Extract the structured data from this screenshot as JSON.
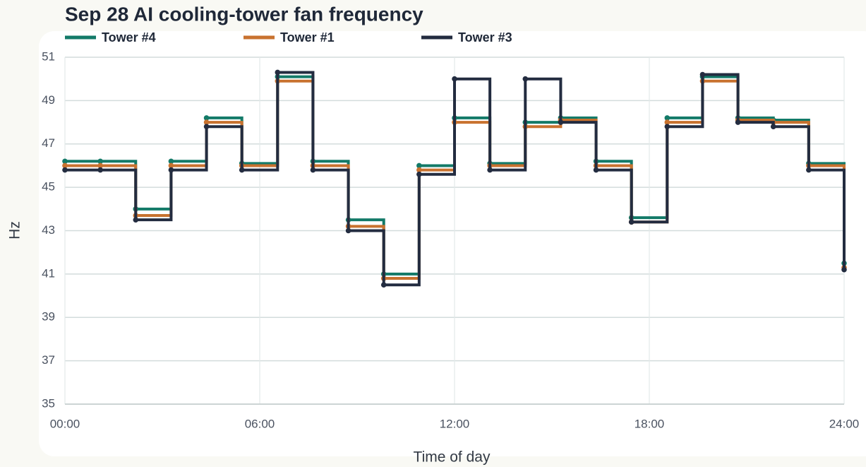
{
  "chart_data": {
    "type": "step",
    "title": "Sep 28 AI cooling-tower fan frequency",
    "x_label": "Time of day",
    "y_label": "Hz",
    "x": [
      0,
      1.09,
      2.18,
      3.27,
      4.36,
      5.45,
      6.55,
      7.64,
      8.73,
      9.82,
      10.91,
      12,
      13.09,
      14.18,
      15.27,
      16.36,
      17.45,
      18.55,
      19.64,
      20.73,
      21.82,
      22.91,
      24
    ],
    "series": [
      {
        "name": "Tower #4",
        "color": "#137a68",
        "values": [
          46.2,
          46.2,
          44.0,
          46.2,
          48.2,
          46.1,
          50.1,
          46.2,
          43.5,
          41.0,
          46.0,
          48.2,
          46.1,
          48.0,
          48.2,
          46.2,
          43.6,
          48.2,
          50.1,
          48.2,
          48.1,
          46.1,
          41.5
        ]
      },
      {
        "name": "Tower #1",
        "color": "#c8722f",
        "values": [
          46.0,
          46.0,
          43.7,
          46.0,
          48.0,
          46.0,
          49.9,
          46.0,
          43.2,
          40.8,
          45.8,
          48.0,
          46.0,
          47.8,
          48.1,
          46.0,
          43.4,
          48.0,
          49.9,
          48.1,
          48.0,
          46.0,
          41.3
        ]
      },
      {
        "name": "Tower #3",
        "color": "#232c40",
        "values": [
          45.8,
          45.8,
          43.5,
          45.8,
          47.8,
          45.8,
          50.3,
          45.8,
          43.0,
          40.5,
          45.6,
          50.0,
          45.8,
          50.0,
          48.0,
          45.8,
          43.4,
          47.8,
          50.2,
          48.0,
          47.8,
          45.8,
          41.2
        ]
      }
    ],
    "xlim": [
      0,
      24
    ],
    "xticks": [
      {
        "value": 0,
        "label": "00:00"
      },
      {
        "value": 6,
        "label": "06:00"
      },
      {
        "value": 12,
        "label": "12:00"
      },
      {
        "value": 18,
        "label": "18:00"
      },
      {
        "value": 24,
        "label": "24:00"
      }
    ],
    "ylim": [
      35,
      51
    ],
    "yticks": [
      35,
      37,
      39,
      41,
      43,
      45,
      47,
      49,
      51
    ],
    "grid": true,
    "legend": "top-left"
  }
}
